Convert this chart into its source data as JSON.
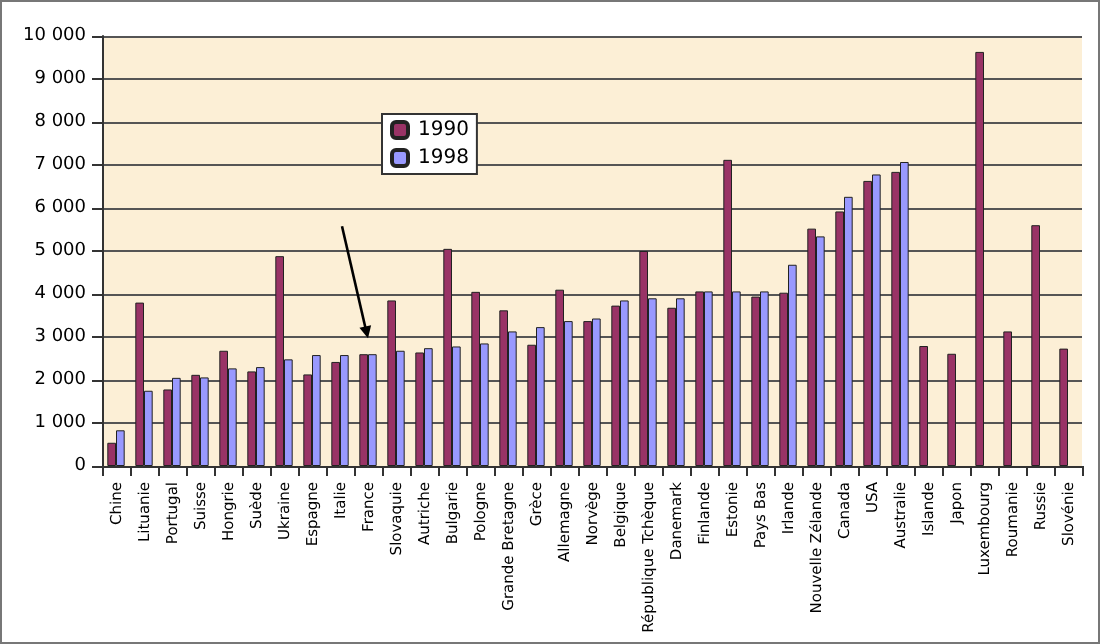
{
  "chart_data": {
    "type": "bar",
    "categories": [
      "Chine",
      "Lituanie",
      "Portugal",
      "Suisse",
      "Hongrie",
      "Suède",
      "Ukraine",
      "Espagne",
      "Italie",
      "France",
      "Slovaquie",
      "Autriche",
      "Bulgarie",
      "Pologne",
      "Grande Bretagne",
      "Grèce",
      "Allemagne",
      "Norvège",
      "Belgique",
      "République Tchèque",
      "Danemark",
      "Finlande",
      "Estonie",
      "Pays Bas",
      "Irlande",
      "Nouvelle Zélande",
      "Canada",
      "USA",
      "Australie",
      "Islande",
      "Japon",
      "Luxembourg",
      "Roumanie",
      "Russie",
      "Slovénie"
    ],
    "series": [
      {
        "name": "1990",
        "color": "#993366",
        "values": [
          540,
          3800,
          1780,
          2120,
          2680,
          2200,
          4880,
          2130,
          2420,
          2600,
          3850,
          2640,
          5050,
          4050,
          3620,
          2820,
          4100,
          3370,
          3730,
          5000,
          3680,
          4060,
          7120,
          3940,
          4030,
          5520,
          5920,
          6630,
          6840,
          2790,
          2610,
          9630,
          3130,
          5600,
          2730
        ]
      },
      {
        "name": "1998",
        "color": "#9999ff",
        "values": [
          830,
          1750,
          2050,
          2060,
          2270,
          2300,
          2480,
          2580,
          2580,
          2600,
          2680,
          2740,
          2780,
          2850,
          3130,
          3230,
          3370,
          3430,
          3850,
          3900,
          3900,
          4060,
          4060,
          4060,
          4680,
          5340,
          6260,
          6780,
          7070,
          null,
          null,
          null,
          null,
          null,
          null
        ]
      }
    ],
    "ylim": [
      0,
      10000
    ],
    "yticks": [
      0,
      {
        "value": 1000,
        "label": "1 000"
      },
      {
        "value": 2000,
        "label": "2 000"
      },
      {
        "value": 3000,
        "label": "3 000"
      },
      {
        "value": 4000,
        "label": "4 000"
      },
      {
        "value": 5000,
        "label": "5 000"
      },
      {
        "value": 6000,
        "label": "6 000"
      },
      {
        "value": 7000,
        "label": "7 000"
      },
      {
        "value": 8000,
        "label": "8 000"
      },
      {
        "value": 9000,
        "label": "9 000"
      },
      {
        "value": 10000,
        "label": "10 000"
      }
    ],
    "grid": "y",
    "legend": "top left"
  }
}
